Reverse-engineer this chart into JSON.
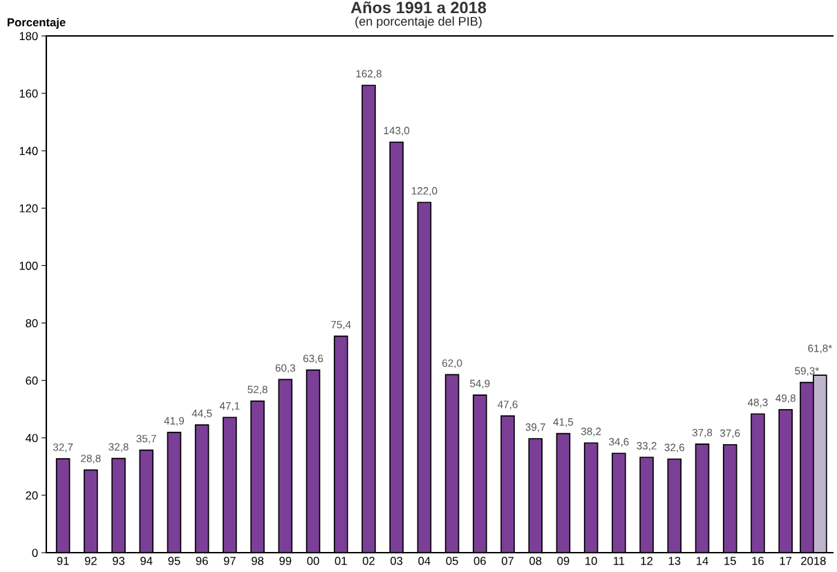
{
  "chart_data": {
    "type": "bar",
    "title": "Años 1991 a 2018",
    "subtitle": "(en porcentaje del PIB)",
    "ylabel": "Porcentaje",
    "categories": [
      "91",
      "92",
      "93",
      "94",
      "95",
      "96",
      "97",
      "98",
      "99",
      "00",
      "01",
      "02",
      "03",
      "04",
      "05",
      "06",
      "07",
      "08",
      "09",
      "10",
      "11",
      "12",
      "13",
      "14",
      "15",
      "16",
      "17",
      "2018"
    ],
    "series": [
      {
        "color": "#7b3f98",
        "values": [
          32.7,
          28.8,
          32.8,
          35.7,
          41.9,
          44.5,
          47.1,
          52.8,
          60.3,
          63.6,
          75.4,
          162.8,
          143.0,
          122.0,
          62.0,
          54.9,
          47.6,
          39.7,
          41.5,
          38.2,
          34.6,
          33.2,
          32.6,
          37.8,
          37.6,
          48.3,
          49.8,
          59.3
        ],
        "value_labels": [
          "32,7",
          "28,8",
          "32,8",
          "35,7",
          "41,9",
          "44,5",
          "47,1",
          "52,8",
          "60,3",
          "63,6",
          "75,4",
          "162,8",
          "143,0",
          "122,0",
          "62,0",
          "54,9",
          "47,6",
          "39,7",
          "41,5",
          "38,2",
          "34,6",
          "33,2",
          "32,6",
          "37,8",
          "37,6",
          "48,3",
          "49,8",
          "59,3*"
        ]
      },
      {
        "color": "#c0b6cc",
        "values": [
          null,
          null,
          null,
          null,
          null,
          null,
          null,
          null,
          null,
          null,
          null,
          null,
          null,
          null,
          null,
          null,
          null,
          null,
          null,
          null,
          null,
          null,
          null,
          null,
          null,
          null,
          null,
          61.8
        ],
        "value_labels": [
          null,
          null,
          null,
          null,
          null,
          null,
          null,
          null,
          null,
          null,
          null,
          null,
          null,
          null,
          null,
          null,
          null,
          null,
          null,
          null,
          null,
          null,
          null,
          null,
          null,
          null,
          null,
          "61,8*"
        ]
      }
    ],
    "ylim": [
      0,
      180
    ],
    "yticks": [
      0,
      20,
      40,
      60,
      80,
      100,
      120,
      140,
      160,
      180
    ],
    "grid": false,
    "legend": false
  }
}
